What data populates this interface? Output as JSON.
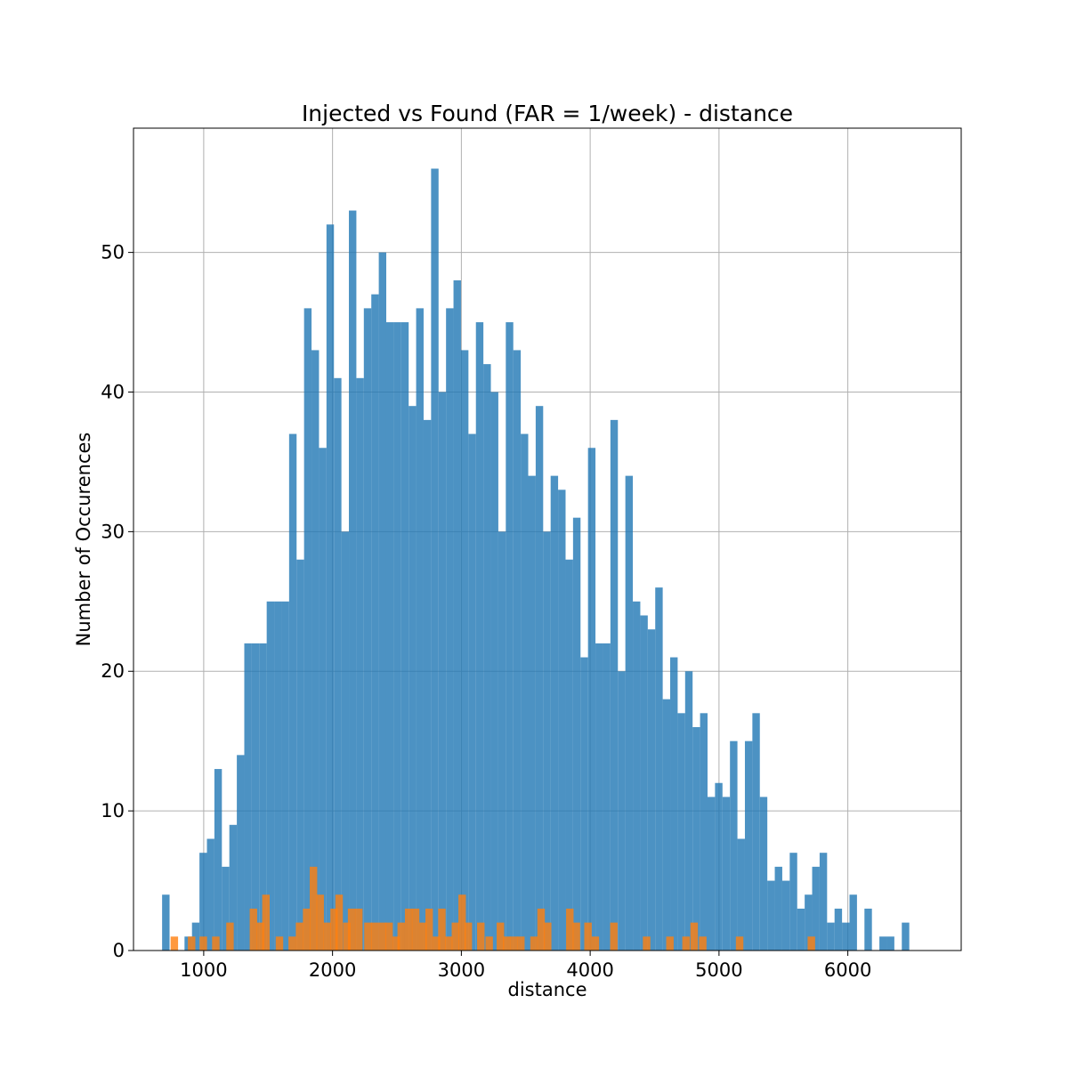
{
  "chart_data": {
    "type": "bar",
    "title": "Injected vs Found (FAR = 1/week) - distance",
    "xlabel": "distance",
    "ylabel": "Number of Occurences",
    "xlim": [
      455,
      6880
    ],
    "ylim": [
      0,
      58.9
    ],
    "xticks": [
      1000,
      2000,
      3000,
      4000,
      5000,
      6000
    ],
    "yticks": [
      0,
      10,
      20,
      30,
      40,
      50
    ],
    "grid": true,
    "bin_width": 58,
    "series": [
      {
        "color": "#1f77b4",
        "opacity": 0.8,
        "bins": [
          [
            677,
            4
          ],
          [
            851,
            1
          ],
          [
            909,
            2
          ],
          [
            967,
            7
          ],
          [
            1025,
            8
          ],
          [
            1083,
            13
          ],
          [
            1141,
            6
          ],
          [
            1199,
            9
          ],
          [
            1257,
            14
          ],
          [
            1315,
            22
          ],
          [
            1373,
            22
          ],
          [
            1431,
            22
          ],
          [
            1489,
            25
          ],
          [
            1547,
            25
          ],
          [
            1605,
            25
          ],
          [
            1663,
            37
          ],
          [
            1721,
            28
          ],
          [
            1779,
            46
          ],
          [
            1837,
            43
          ],
          [
            1895,
            36
          ],
          [
            1953,
            52
          ],
          [
            2011,
            41
          ],
          [
            2069,
            30
          ],
          [
            2127,
            53
          ],
          [
            2185,
            41
          ],
          [
            2243,
            46
          ],
          [
            2301,
            47
          ],
          [
            2359,
            50
          ],
          [
            2417,
            45
          ],
          [
            2475,
            45
          ],
          [
            2533,
            45
          ],
          [
            2591,
            39
          ],
          [
            2649,
            46
          ],
          [
            2707,
            38
          ],
          [
            2765,
            56
          ],
          [
            2823,
            40
          ],
          [
            2881,
            46
          ],
          [
            2939,
            48
          ],
          [
            2997,
            43
          ],
          [
            3055,
            37
          ],
          [
            3113,
            45
          ],
          [
            3171,
            42
          ],
          [
            3229,
            40
          ],
          [
            3287,
            30
          ],
          [
            3345,
            45
          ],
          [
            3403,
            43
          ],
          [
            3461,
            37
          ],
          [
            3519,
            34
          ],
          [
            3577,
            39
          ],
          [
            3635,
            30
          ],
          [
            3693,
            34
          ],
          [
            3751,
            33
          ],
          [
            3809,
            28
          ],
          [
            3867,
            31
          ],
          [
            3925,
            21
          ],
          [
            3983,
            36
          ],
          [
            4041,
            22
          ],
          [
            4099,
            22
          ],
          [
            4157,
            38
          ],
          [
            4215,
            20
          ],
          [
            4273,
            34
          ],
          [
            4331,
            25
          ],
          [
            4389,
            24
          ],
          [
            4447,
            23
          ],
          [
            4505,
            26
          ],
          [
            4563,
            18
          ],
          [
            4621,
            21
          ],
          [
            4679,
            17
          ],
          [
            4737,
            20
          ],
          [
            4795,
            16
          ],
          [
            4853,
            17
          ],
          [
            4911,
            11
          ],
          [
            4969,
            12
          ],
          [
            5027,
            11
          ],
          [
            5085,
            15
          ],
          [
            5143,
            8
          ],
          [
            5201,
            15
          ],
          [
            5259,
            17
          ],
          [
            5317,
            11
          ],
          [
            5375,
            5
          ],
          [
            5433,
            6
          ],
          [
            5491,
            5
          ],
          [
            5549,
            7
          ],
          [
            5607,
            3
          ],
          [
            5665,
            4
          ],
          [
            5723,
            6
          ],
          [
            5781,
            7
          ],
          [
            5839,
            2
          ],
          [
            5897,
            3
          ],
          [
            5955,
            2
          ],
          [
            6013,
            4
          ],
          [
            6129,
            3
          ],
          [
            6245,
            1
          ],
          [
            6303,
            1
          ],
          [
            6419,
            2
          ]
        ]
      },
      {
        "color": "#ff7f0e",
        "opacity": 0.8,
        "bins": [
          [
            743,
            1
          ],
          [
            877,
            1
          ],
          [
            968,
            1
          ],
          [
            1065,
            1
          ],
          [
            1175,
            2
          ],
          [
            1357,
            3
          ],
          [
            1411,
            2
          ],
          [
            1454,
            4
          ],
          [
            1559,
            1
          ],
          [
            1658,
            1
          ],
          [
            1715,
            2
          ],
          [
            1770,
            3
          ],
          [
            1823,
            6
          ],
          [
            1875,
            4
          ],
          [
            1930,
            2
          ],
          [
            1983,
            3
          ],
          [
            2022,
            4
          ],
          [
            2082,
            2
          ],
          [
            2119,
            3
          ],
          [
            2175,
            3
          ],
          [
            2246,
            2
          ],
          [
            2300,
            2
          ],
          [
            2358,
            2
          ],
          [
            2410,
            2
          ],
          [
            2465,
            1
          ],
          [
            2504,
            2
          ],
          [
            2562,
            3
          ],
          [
            2616,
            3
          ],
          [
            2673,
            2
          ],
          [
            2721,
            3
          ],
          [
            2777,
            1
          ],
          [
            2820,
            3
          ],
          [
            2873,
            1
          ],
          [
            2925,
            2
          ],
          [
            2977,
            4
          ],
          [
            3025,
            2
          ],
          [
            3122,
            2
          ],
          [
            3187,
            1
          ],
          [
            3274,
            2
          ],
          [
            3323,
            1
          ],
          [
            3378,
            1
          ],
          [
            3433,
            1
          ],
          [
            3535,
            1
          ],
          [
            3590,
            3
          ],
          [
            3641,
            2
          ],
          [
            3813,
            3
          ],
          [
            3864,
            2
          ],
          [
            3954,
            2
          ],
          [
            4011,
            1
          ],
          [
            4155,
            2
          ],
          [
            4409,
            1
          ],
          [
            4590,
            1
          ],
          [
            4715,
            1
          ],
          [
            4778,
            2
          ],
          [
            4845,
            1
          ],
          [
            5131,
            1
          ],
          [
            5688,
            1
          ]
        ]
      }
    ]
  }
}
